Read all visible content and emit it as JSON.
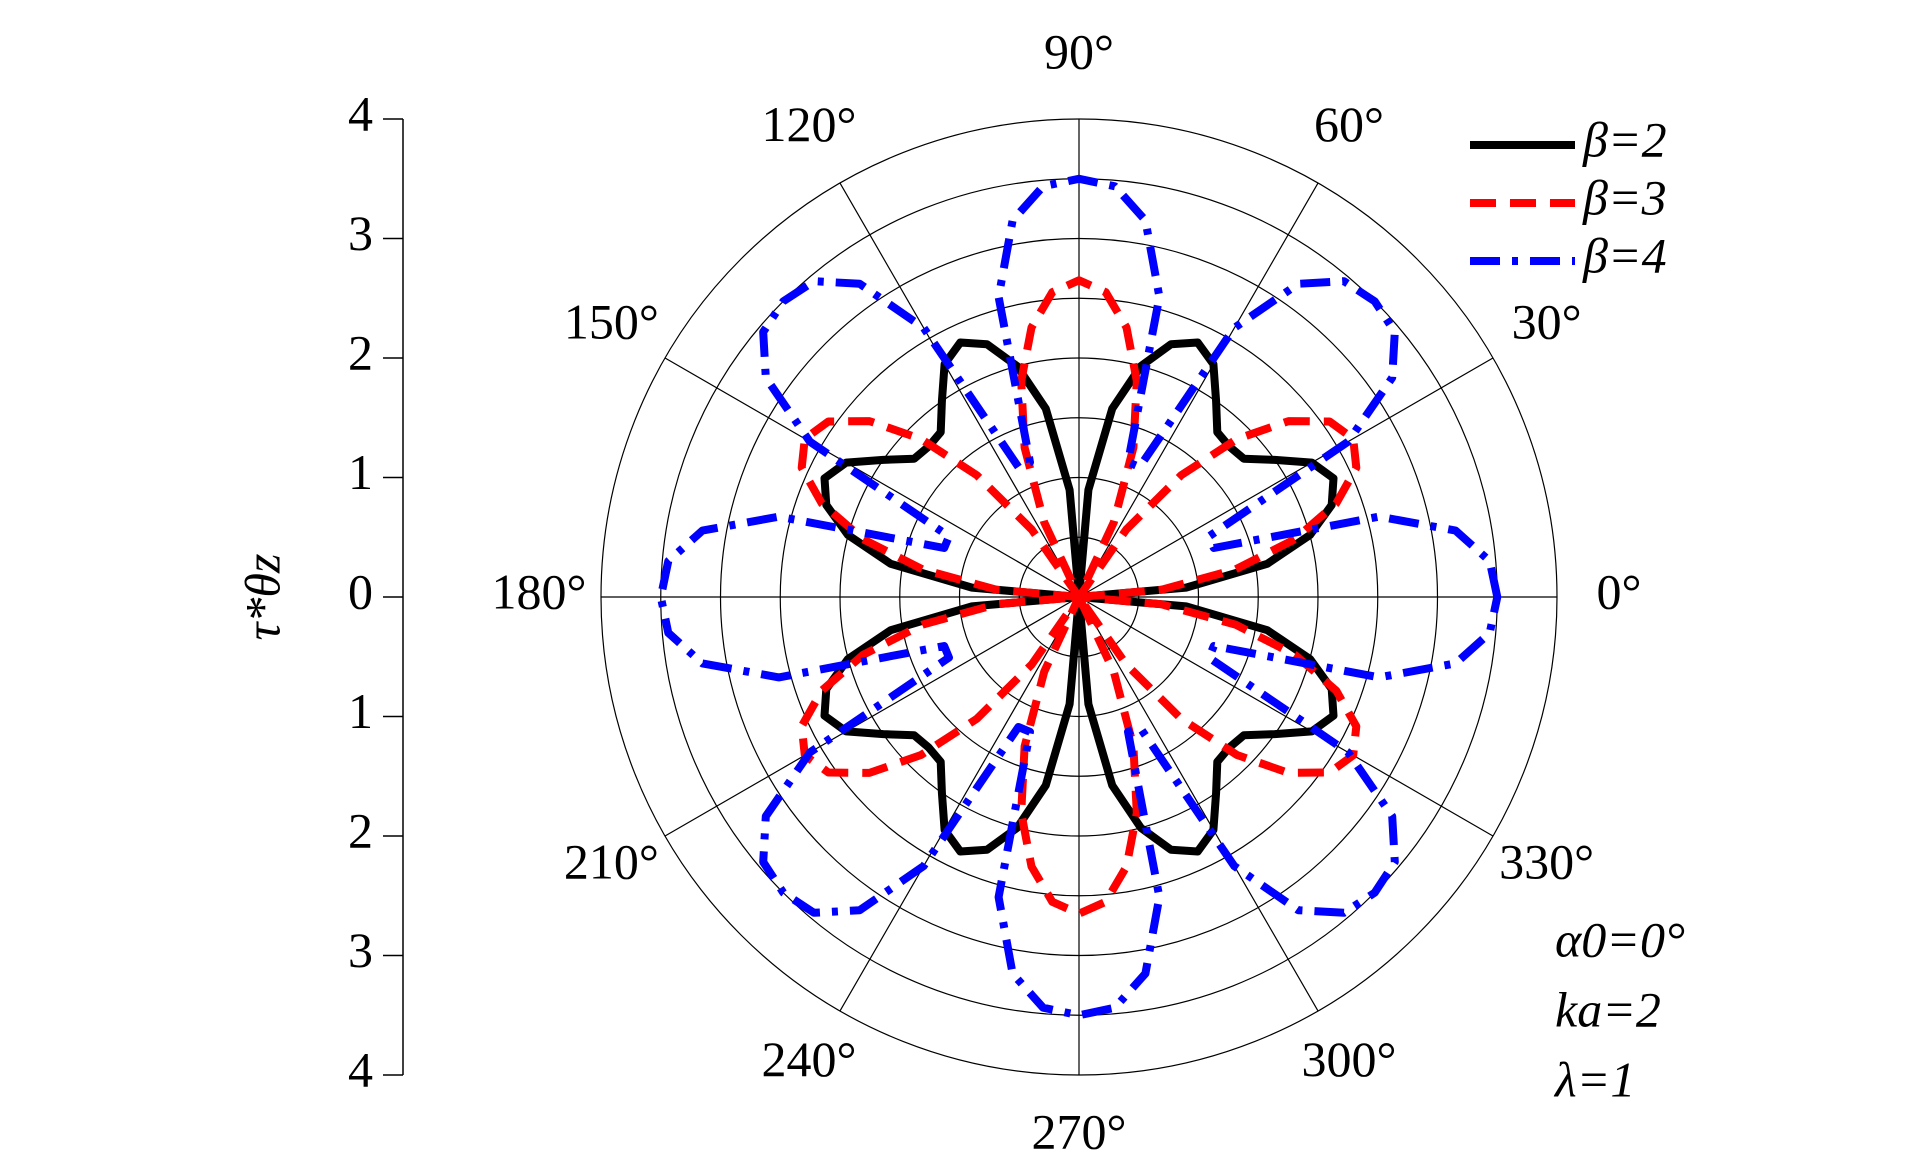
{
  "chart_data": {
    "type": "polar",
    "ylabel": "τ*θz",
    "theta": [
      0,
      5,
      10,
      15,
      20,
      25,
      30,
      35,
      40,
      45,
      50,
      55,
      60,
      65,
      70,
      75,
      80,
      85,
      90,
      95,
      100,
      105,
      110,
      115,
      120,
      125,
      130,
      135,
      140,
      145,
      150,
      155,
      160,
      165,
      170,
      175,
      180,
      185,
      190,
      195,
      200,
      205,
      210,
      215,
      220,
      225,
      230,
      235,
      240,
      245,
      250,
      255,
      260,
      265,
      270,
      275,
      280,
      285,
      290,
      295,
      300,
      305,
      310,
      315,
      320,
      325,
      330,
      335,
      340,
      345,
      350,
      355
    ],
    "series": [
      {
        "name": "β=2",
        "color": "#000000",
        "dash": "solid",
        "values": [
          0,
          0.9,
          1.6,
          2.0,
          2.25,
          2.35,
          2.25,
          2.0,
          1.8,
          1.78,
          1.8,
          2.0,
          2.25,
          2.35,
          2.25,
          2.0,
          1.6,
          0.9,
          0,
          0.9,
          1.6,
          2.0,
          2.25,
          2.35,
          2.25,
          2.0,
          1.8,
          1.78,
          1.8,
          2.0,
          2.25,
          2.35,
          2.25,
          2.0,
          1.6,
          0.9,
          0,
          0.9,
          1.6,
          2.0,
          2.25,
          2.35,
          2.25,
          2.0,
          1.8,
          1.78,
          1.8,
          2.0,
          2.25,
          2.35,
          2.25,
          2.0,
          1.6,
          0.9,
          0,
          0.9,
          1.6,
          2.0,
          2.25,
          2.35,
          2.25,
          2.0,
          1.8,
          1.78,
          1.8,
          2.0,
          2.25,
          2.35,
          2.25,
          2.0,
          1.6,
          0.9
        ]
      },
      {
        "name": "β=3",
        "color": "#ff0000",
        "dash": "dash",
        "values": [
          0,
          0.69,
          1.33,
          1.87,
          2.29,
          2.56,
          2.65,
          2.56,
          2.29,
          1.87,
          1.33,
          0.69,
          0,
          0.69,
          1.33,
          1.87,
          2.29,
          2.56,
          2.65,
          2.56,
          2.29,
          1.87,
          1.33,
          0.69,
          0,
          0.69,
          1.33,
          1.87,
          2.29,
          2.56,
          2.65,
          2.56,
          2.29,
          1.87,
          1.33,
          0.69,
          0,
          0.69,
          1.33,
          1.87,
          2.29,
          2.56,
          2.65,
          2.56,
          2.29,
          1.87,
          1.33,
          0.69,
          0,
          0.69,
          1.33,
          1.87,
          2.29,
          2.56,
          2.65,
          2.56,
          2.29,
          1.87,
          1.33,
          0.69,
          0,
          0.69,
          1.33,
          1.87,
          2.29,
          2.56,
          2.65,
          2.56,
          2.29,
          1.87,
          1.33,
          0.69
        ]
      },
      {
        "name": "β=4",
        "color": "#0000ff",
        "dash": "dashdot",
        "values": [
          3.5,
          3.45,
          3.2,
          2.6,
          1.2,
          1.2,
          2.6,
          3.2,
          3.45,
          3.5,
          3.45,
          3.2,
          2.6,
          1.2,
          1.2,
          2.6,
          3.2,
          3.45,
          3.5,
          3.45,
          3.2,
          2.6,
          1.2,
          1.2,
          2.6,
          3.2,
          3.45,
          3.5,
          3.45,
          3.2,
          2.6,
          1.2,
          1.2,
          2.6,
          3.2,
          3.45,
          3.5,
          3.45,
          3.2,
          2.6,
          1.2,
          1.2,
          2.6,
          3.2,
          3.45,
          3.5,
          3.45,
          3.2,
          2.6,
          1.2,
          1.2,
          2.6,
          3.2,
          3.45,
          3.5,
          3.45,
          3.2,
          2.6,
          1.2,
          1.2,
          2.6,
          3.2,
          3.45,
          3.5,
          3.45,
          3.2,
          2.6,
          1.2,
          1.2,
          2.6,
          3.2,
          3.45
        ]
      }
    ],
    "rlim": [
      0,
      4
    ],
    "rgrid": [
      0.5,
      1,
      1.5,
      2,
      2.5,
      3,
      3.5,
      4
    ],
    "thetaticks": [
      {
        "value": 0,
        "label": "0°"
      },
      {
        "value": 30,
        "label": "30°"
      },
      {
        "value": 60,
        "label": "60°"
      },
      {
        "value": 90,
        "label": "90°"
      },
      {
        "value": 120,
        "label": "120°"
      },
      {
        "value": 150,
        "label": "150°"
      },
      {
        "value": 180,
        "label": "180°"
      },
      {
        "value": 210,
        "label": "210°"
      },
      {
        "value": 240,
        "label": "240°"
      },
      {
        "value": 270,
        "label": "270°"
      },
      {
        "value": 300,
        "label": "300°"
      },
      {
        "value": 330,
        "label": "330°"
      }
    ],
    "ylim": [
      -4,
      4
    ],
    "yticks": [
      {
        "value": -4,
        "label": "4"
      },
      {
        "value": -3,
        "label": "3"
      },
      {
        "value": -2,
        "label": "2"
      },
      {
        "value": -1,
        "label": "1"
      },
      0,
      1,
      2,
      3,
      4
    ],
    "annotations": [
      "α0=0°",
      "ka=2",
      "λ=1"
    ],
    "legend": "upper right"
  }
}
